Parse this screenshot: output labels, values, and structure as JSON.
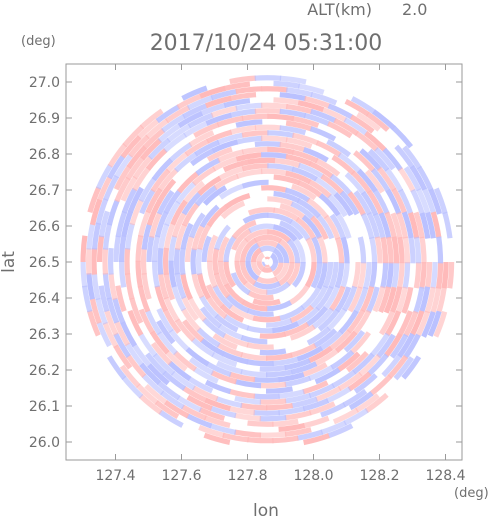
{
  "chart_data": {
    "type": "heatmap",
    "header": {
      "altitude_label": "ALT(km)",
      "altitude_value": "2.0",
      "timestamp": "2017/10/24 05:31:00"
    },
    "xlabel": "lon",
    "ylabel": "lat",
    "x_unit": "(deg)",
    "y_unit": "(deg)",
    "xlim": [
      127.25,
      128.45
    ],
    "ylim": [
      25.95,
      27.05
    ],
    "x_ticks": [
      "127.4",
      "127.6",
      "127.8",
      "128.0",
      "128.2",
      "128.4"
    ],
    "x_tick_values": [
      127.4,
      127.6,
      127.8,
      128.0,
      128.2,
      128.4
    ],
    "y_ticks": [
      "26.0",
      "26.1",
      "26.2",
      "26.3",
      "26.4",
      "26.5",
      "26.6",
      "26.7",
      "26.8",
      "26.9",
      "27.0"
    ],
    "y_tick_values": [
      26.0,
      26.1,
      26.2,
      26.3,
      26.4,
      26.5,
      26.6,
      26.7,
      26.8,
      26.9,
      27.0
    ],
    "field": {
      "center_lon": 127.86,
      "center_lat": 26.5,
      "radius_deg_lat": 0.53,
      "colormap": {
        "negative": "#b9c0ff",
        "neutral": "#ffffff",
        "positive": "#ffb9b9"
      },
      "pattern": "concentric rings of alternating positive/negative values"
    }
  }
}
